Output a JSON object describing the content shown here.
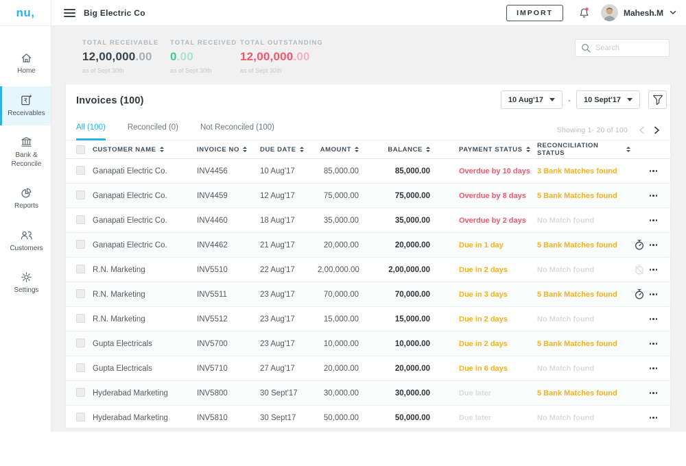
{
  "brand": {
    "logo": "nu,"
  },
  "colors": {
    "accent": "#29b2e4",
    "red": "#f5566b",
    "amber": "#f2b11d",
    "green": "#3ecf8e",
    "muted": "#d9dbde"
  },
  "topbar": {
    "company": "Big Electric Co",
    "import_label": "IMPORT",
    "user": "Mahesh.M"
  },
  "sidebar": {
    "items": [
      {
        "id": "home",
        "label": "Home",
        "active": false
      },
      {
        "id": "receivables",
        "label": "Receivables",
        "active": true
      },
      {
        "id": "bank-reconcile",
        "label": "Bank & Reconcile",
        "active": false
      },
      {
        "id": "reports",
        "label": "Reports",
        "active": false
      },
      {
        "id": "customers",
        "label": "Customers",
        "active": false
      },
      {
        "id": "settings",
        "label": "Settings",
        "active": false
      }
    ]
  },
  "stats": {
    "receivable": {
      "label": "TOTAL RECEIVABLE",
      "value": "12,00,000",
      "decimals": ".00",
      "note": "as of Sept 30th"
    },
    "received": {
      "label": "TOTAL RECEIVED",
      "value": "0",
      "decimals": ".00",
      "note": "as of Sept 30th"
    },
    "outstanding": {
      "label": "TOTAL OUTSTANDING",
      "value": "12,00,000",
      "decimals": ".00",
      "note": "as of Sept 30th"
    }
  },
  "search": {
    "placeholder": "Search"
  },
  "invoices": {
    "title": "Invoices (100)",
    "date_from": "10 Aug'17",
    "range_separator": "-",
    "date_to": "10 Sept'17",
    "tabs": [
      {
        "id": "all",
        "label": "All (100)",
        "active": true
      },
      {
        "id": "reconciled",
        "label": "Reconciled (0)",
        "active": false
      },
      {
        "id": "not-reconciled",
        "label": "Not Reconciled (100)",
        "active": false
      }
    ],
    "showing": "Showing 1- 20 of 100",
    "columns": [
      "CUSTOMER NAME",
      "INVOICE NO",
      "DUE DATE",
      "AMOUNT",
      "BALANCE",
      "PAYMENT STATUS",
      "RECONCILIATION STATUS"
    ],
    "rows": [
      {
        "customer": "Ganapati Electric Co.",
        "invoice_no": "INV4456",
        "due_date": "10 Aug'17",
        "amount": "85,000.00",
        "balance": "85,000.00",
        "payment_status": "Overdue by 10 days",
        "payment_level": "overdue",
        "recon_status": "3 Bank Matches found",
        "recon_level": "found",
        "timer": ""
      },
      {
        "customer": "Ganapati Electric Co.",
        "invoice_no": "INV4459",
        "due_date": "12 Aug'17",
        "amount": "75,000.00",
        "balance": "75,000.00",
        "payment_status": "Overdue by 8 days",
        "payment_level": "overdue",
        "recon_status": "5 Bank Matches found",
        "recon_level": "found",
        "timer": ""
      },
      {
        "customer": "Ganapati Electric Co.",
        "invoice_no": "INV4460",
        "due_date": "18 Aug'17",
        "amount": "35,000.00",
        "balance": "35,000.00",
        "payment_status": "Overdue by 2 days",
        "payment_level": "overdue",
        "recon_status": "No Match found",
        "recon_level": "none",
        "timer": ""
      },
      {
        "customer": "Ganapati Electric Co.",
        "invoice_no": "INV4462",
        "due_date": "21 Aug'17",
        "amount": "20,000.00",
        "balance": "20,000.00",
        "payment_status": "Due in 1 day",
        "payment_level": "due",
        "recon_status": "5 Bank Matches found",
        "recon_level": "found",
        "timer": "dark"
      },
      {
        "customer": "R.N. Marketing",
        "invoice_no": "INV5510",
        "due_date": "22 Aug'17",
        "amount": "2,00,000.00",
        "balance": "2,00,000.00",
        "payment_status": "Due in 2 days",
        "payment_level": "due",
        "recon_status": "No Match found",
        "recon_level": "none",
        "timer": "light"
      },
      {
        "customer": "R.N. Marketing",
        "invoice_no": "INV5511",
        "due_date": "23 Aug'17",
        "amount": "70,000.00",
        "balance": "70,000.00",
        "payment_status": "Due in 3 days",
        "payment_level": "due",
        "recon_status": "5 Bank Matches found",
        "recon_level": "found",
        "timer": "dark"
      },
      {
        "customer": "R.N. Marketing",
        "invoice_no": "INV5512",
        "due_date": "23 Aug'17",
        "amount": "15,000.00",
        "balance": "15,000.00",
        "payment_status": "Due in 2 days",
        "payment_level": "due",
        "recon_status": "No Match found",
        "recon_level": "none",
        "timer": ""
      },
      {
        "customer": "Gupta Electricals",
        "invoice_no": "INV5700",
        "due_date": "23 Aug'17",
        "amount": "10,000.00",
        "balance": "10,000.00",
        "payment_status": "Due in 2 days",
        "payment_level": "due",
        "recon_status": "5 Bank Matches found",
        "recon_level": "found",
        "timer": ""
      },
      {
        "customer": "Gupta Electricals",
        "invoice_no": "INV5710",
        "due_date": "27 Aug'17",
        "amount": "20,000.00",
        "balance": "20,000.00",
        "payment_status": "Due in 6 days",
        "payment_level": "due",
        "recon_status": "No Match found",
        "recon_level": "none",
        "timer": ""
      },
      {
        "customer": "Hyderabad Marketing",
        "invoice_no": "INV5800",
        "due_date": "30 Sept'17",
        "amount": "30,000.00",
        "balance": "30,000.00",
        "payment_status": "Due later",
        "payment_level": "later",
        "recon_status": "5 Bank Matches found",
        "recon_level": "found",
        "timer": ""
      },
      {
        "customer": "Hyderabad Marketing",
        "invoice_no": "INV5810",
        "due_date": "30 Sept17",
        "amount": "50,000.00",
        "balance": "50,000.00",
        "payment_status": "Due later",
        "payment_level": "later",
        "recon_status": "No Match found",
        "recon_level": "none",
        "timer": ""
      }
    ]
  }
}
